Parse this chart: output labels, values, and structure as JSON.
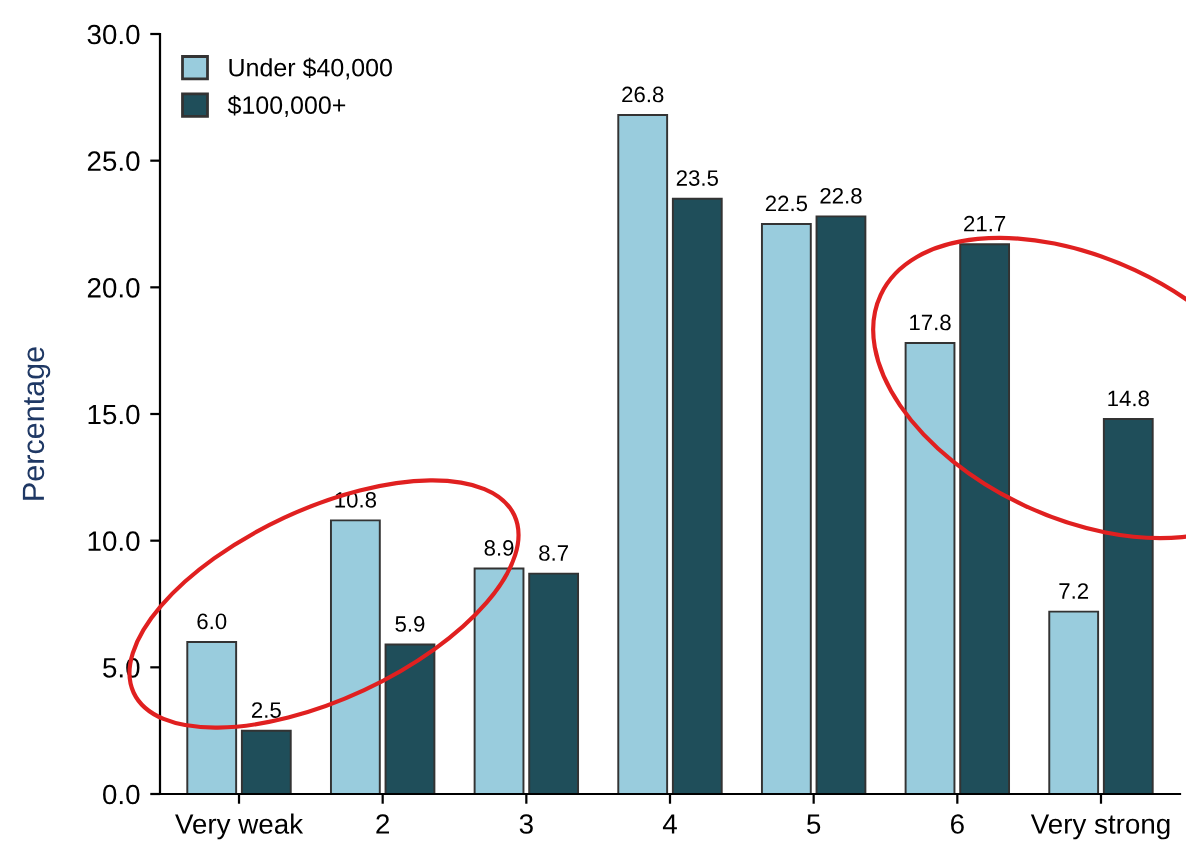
{
  "chart_data": {
    "type": "bar",
    "ylabel": "Percentage",
    "categories": [
      "Very weak",
      "2",
      "3",
      "4",
      "5",
      "6",
      "Very strong"
    ],
    "series": [
      {
        "name": "Under $40,000",
        "color": "#99ccdd",
        "values": [
          6.0,
          10.8,
          8.9,
          26.8,
          22.5,
          17.8,
          7.2
        ],
        "value_labels": [
          "6.0",
          "10.8",
          "8.9",
          "26.8",
          "22.5",
          "17.8",
          "7.2"
        ]
      },
      {
        "name": "$100,000+",
        "color": "#1f4e5a",
        "values": [
          2.5,
          5.9,
          8.7,
          23.5,
          22.8,
          21.7,
          14.8
        ],
        "value_labels": [
          "2.5",
          "5.9",
          "8.7",
          "23.5",
          "22.8",
          "21.7",
          "14.8"
        ]
      }
    ],
    "ylim": [
      0,
      30
    ],
    "yticks": [
      {
        "value": 0,
        "label": "0.0"
      },
      {
        "value": 5,
        "label": "5.0"
      },
      {
        "value": 10,
        "label": "10.0"
      },
      {
        "value": 15,
        "label": "15.0"
      },
      {
        "value": 20,
        "label": "20.0"
      },
      {
        "value": 25,
        "label": "25.0"
      },
      {
        "value": 30,
        "label": "30.0"
      }
    ],
    "legend": "top left",
    "grid": false
  }
}
